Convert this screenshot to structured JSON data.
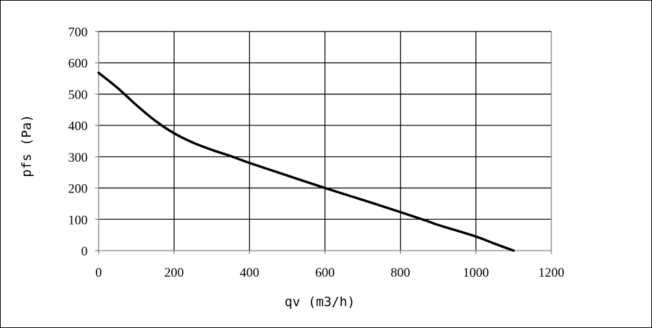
{
  "chart_data": {
    "type": "line",
    "title": "",
    "xlabel": "qv (m3/h)",
    "ylabel": "pfs (Pa)",
    "xlim": [
      0,
      1200
    ],
    "ylim": [
      0,
      700
    ],
    "x_ticks": [
      0,
      200,
      400,
      600,
      800,
      1000,
      1200
    ],
    "y_ticks": [
      0,
      100,
      200,
      300,
      400,
      500,
      600,
      700
    ],
    "grid": true,
    "legend": "none",
    "colors": {
      "line": "#000000",
      "grid": "#000000",
      "axis": "#808080"
    },
    "series": [
      {
        "x": [
          0,
          50,
          100,
          150,
          200,
          250,
          300,
          350,
          400,
          500,
          600,
          700,
          800,
          870,
          900,
          1000,
          1050,
          1100
        ],
        "y": [
          568,
          520,
          465,
          415,
          375,
          345,
          322,
          302,
          280,
          240,
          200,
          162,
          123,
          95,
          82,
          45,
          22,
          0
        ]
      }
    ]
  }
}
